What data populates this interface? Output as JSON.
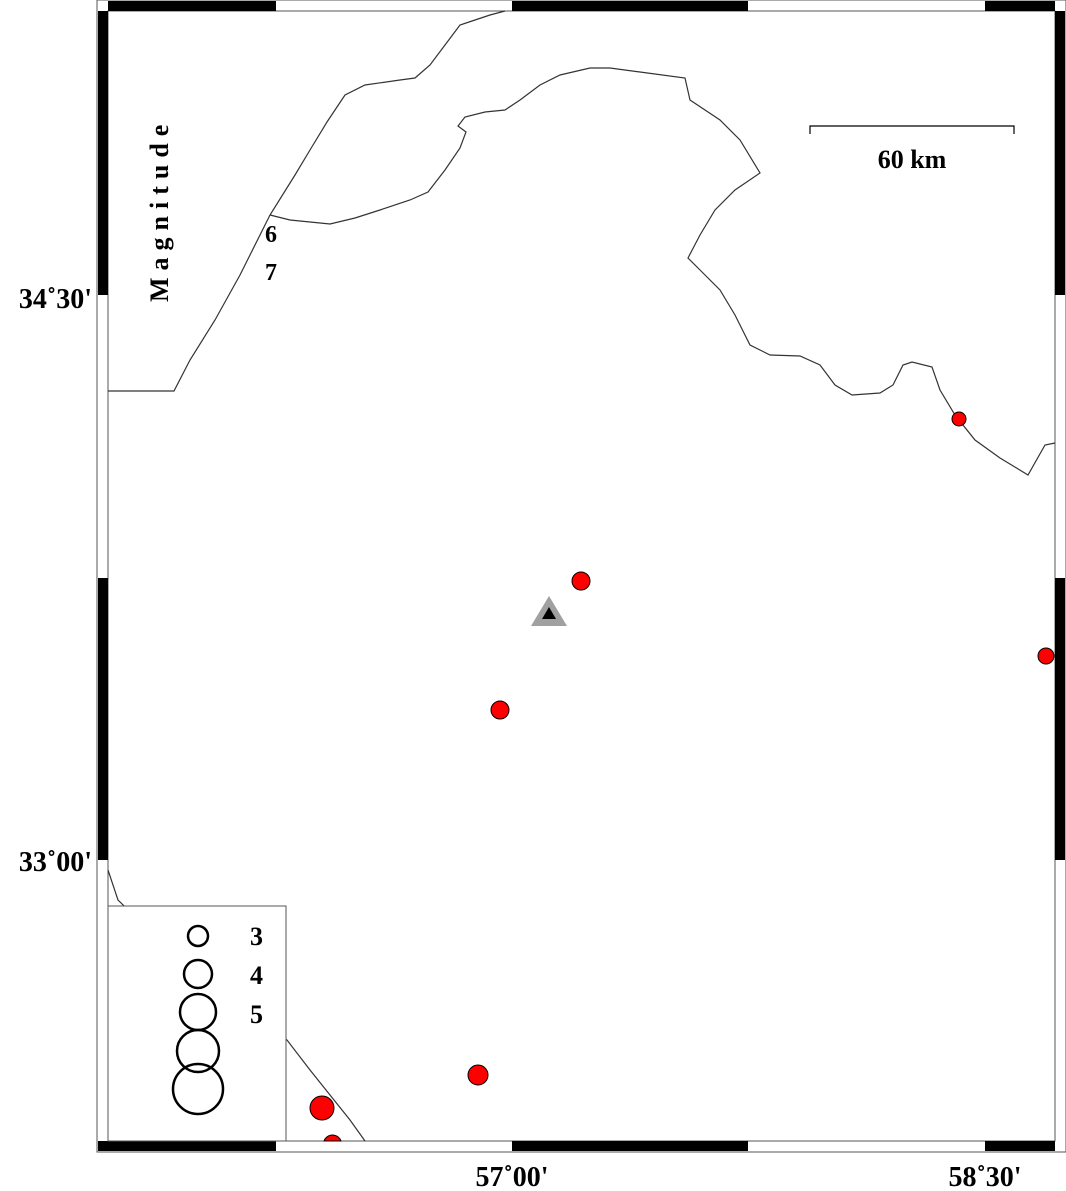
{
  "map": {
    "axis_labels": {
      "lat_top": "34˚30'",
      "lat_bottom": "33˚00'",
      "lon_left": "57˚00'",
      "lon_right": "58˚30'"
    },
    "scale_bar_label": "60 km",
    "side_title": "Magnitude",
    "side_numbers": [
      "6",
      "7"
    ],
    "legend": {
      "labels": [
        "3",
        "4",
        "5"
      ],
      "magnitudes": [
        3,
        4,
        5,
        6,
        7
      ]
    },
    "colors": {
      "event_fill": "#ff0000",
      "station_outer": "#a0a0a0",
      "station_inner": "#000000",
      "frame": "#000000"
    },
    "station_icon": "triangle",
    "event_icon": "circle"
  }
}
